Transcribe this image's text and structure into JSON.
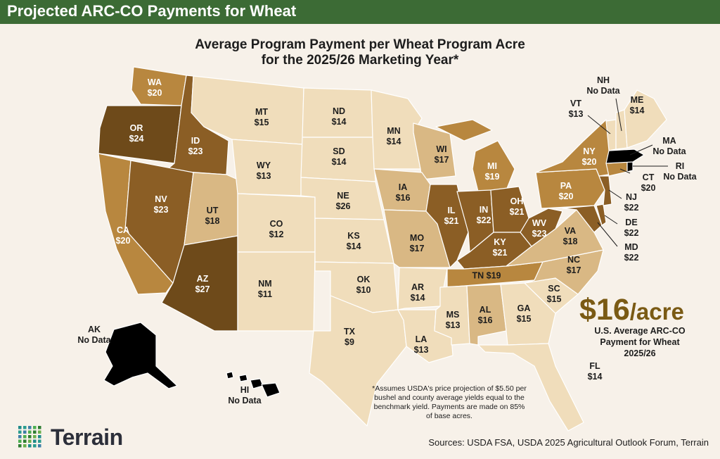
{
  "header": {
    "banner_title": "Projected ARC-CO Payments for Wheat",
    "subtitle_line1": "Average Program Payment per Wheat Program Acre",
    "subtitle_line2": "for the 2025/26 Marketing Year*"
  },
  "colors": {
    "banner": "#3c6b35",
    "background": "#f7f1e9",
    "tier_9_15": "#f0ddbb",
    "tier_16_18": "#d9b884",
    "tier_19_20": "#b8873f",
    "tier_21_23": "#8b5e25",
    "tier_24_plus": "#6e4a1a",
    "no_data": "#dddddd",
    "highlight_text": "#7a5a14"
  },
  "states": [
    {
      "code": "WA",
      "value": "$20"
    },
    {
      "code": "OR",
      "value": "$24"
    },
    {
      "code": "CA",
      "value": "$20"
    },
    {
      "code": "ID",
      "value": "$23"
    },
    {
      "code": "NV",
      "value": "$23"
    },
    {
      "code": "UT",
      "value": "$18"
    },
    {
      "code": "AZ",
      "value": "$27"
    },
    {
      "code": "MT",
      "value": "$15"
    },
    {
      "code": "WY",
      "value": "$13"
    },
    {
      "code": "CO",
      "value": "$12"
    },
    {
      "code": "NM",
      "value": "$11"
    },
    {
      "code": "ND",
      "value": "$14"
    },
    {
      "code": "SD",
      "value": "$14"
    },
    {
      "code": "NE",
      "value": "$26"
    },
    {
      "code": "KS",
      "value": "$14"
    },
    {
      "code": "OK",
      "value": "$10"
    },
    {
      "code": "TX",
      "value": "$9"
    },
    {
      "code": "MN",
      "value": "$14"
    },
    {
      "code": "IA",
      "value": "$16"
    },
    {
      "code": "MO",
      "value": "$17"
    },
    {
      "code": "AR",
      "value": "$14"
    },
    {
      "code": "LA",
      "value": "$13"
    },
    {
      "code": "WI",
      "value": "$17"
    },
    {
      "code": "IL",
      "value": "$21"
    },
    {
      "code": "MI",
      "value": "$19"
    },
    {
      "code": "IN",
      "value": "$22"
    },
    {
      "code": "OH",
      "value": "$21"
    },
    {
      "code": "KY",
      "value": "$21"
    },
    {
      "code": "TN",
      "value": "$19"
    },
    {
      "code": "MS",
      "value": "$13"
    },
    {
      "code": "AL",
      "value": "$16"
    },
    {
      "code": "GA",
      "value": "$15"
    },
    {
      "code": "FL",
      "value": "$14"
    },
    {
      "code": "SC",
      "value": "$15"
    },
    {
      "code": "NC",
      "value": "$17"
    },
    {
      "code": "VA",
      "value": "$18"
    },
    {
      "code": "WV",
      "value": "$23"
    },
    {
      "code": "PA",
      "value": "$20"
    },
    {
      "code": "NY",
      "value": "$20"
    },
    {
      "code": "VT",
      "value": "$13"
    },
    {
      "code": "NH",
      "value": "No Data"
    },
    {
      "code": "ME",
      "value": "$14"
    },
    {
      "code": "MA",
      "value": "No Data"
    },
    {
      "code": "RI",
      "value": "No Data"
    },
    {
      "code": "CT",
      "value": "$20"
    },
    {
      "code": "NJ",
      "value": "$22"
    },
    {
      "code": "DE",
      "value": "$22"
    },
    {
      "code": "MD",
      "value": "$22"
    },
    {
      "code": "AK",
      "value": "No Data"
    },
    {
      "code": "HI",
      "value": "No Data"
    }
  ],
  "summary": {
    "amount": "$16",
    "unit": "/acre",
    "caption_line1": "U.S. Average ARC-CO",
    "caption_line2": "Payment for Wheat",
    "caption_line3": "2025/26"
  },
  "footnote": "*Assumes USDA's price projection of $5.50 per bushel and county average yields equal to the benchmark yield. Payments are made on 85% of base acres.",
  "source": "Sources: USDA FSA, USDA 2025 Agricultural Outlook Forum, Terrain",
  "logo_text": "Terrain"
}
